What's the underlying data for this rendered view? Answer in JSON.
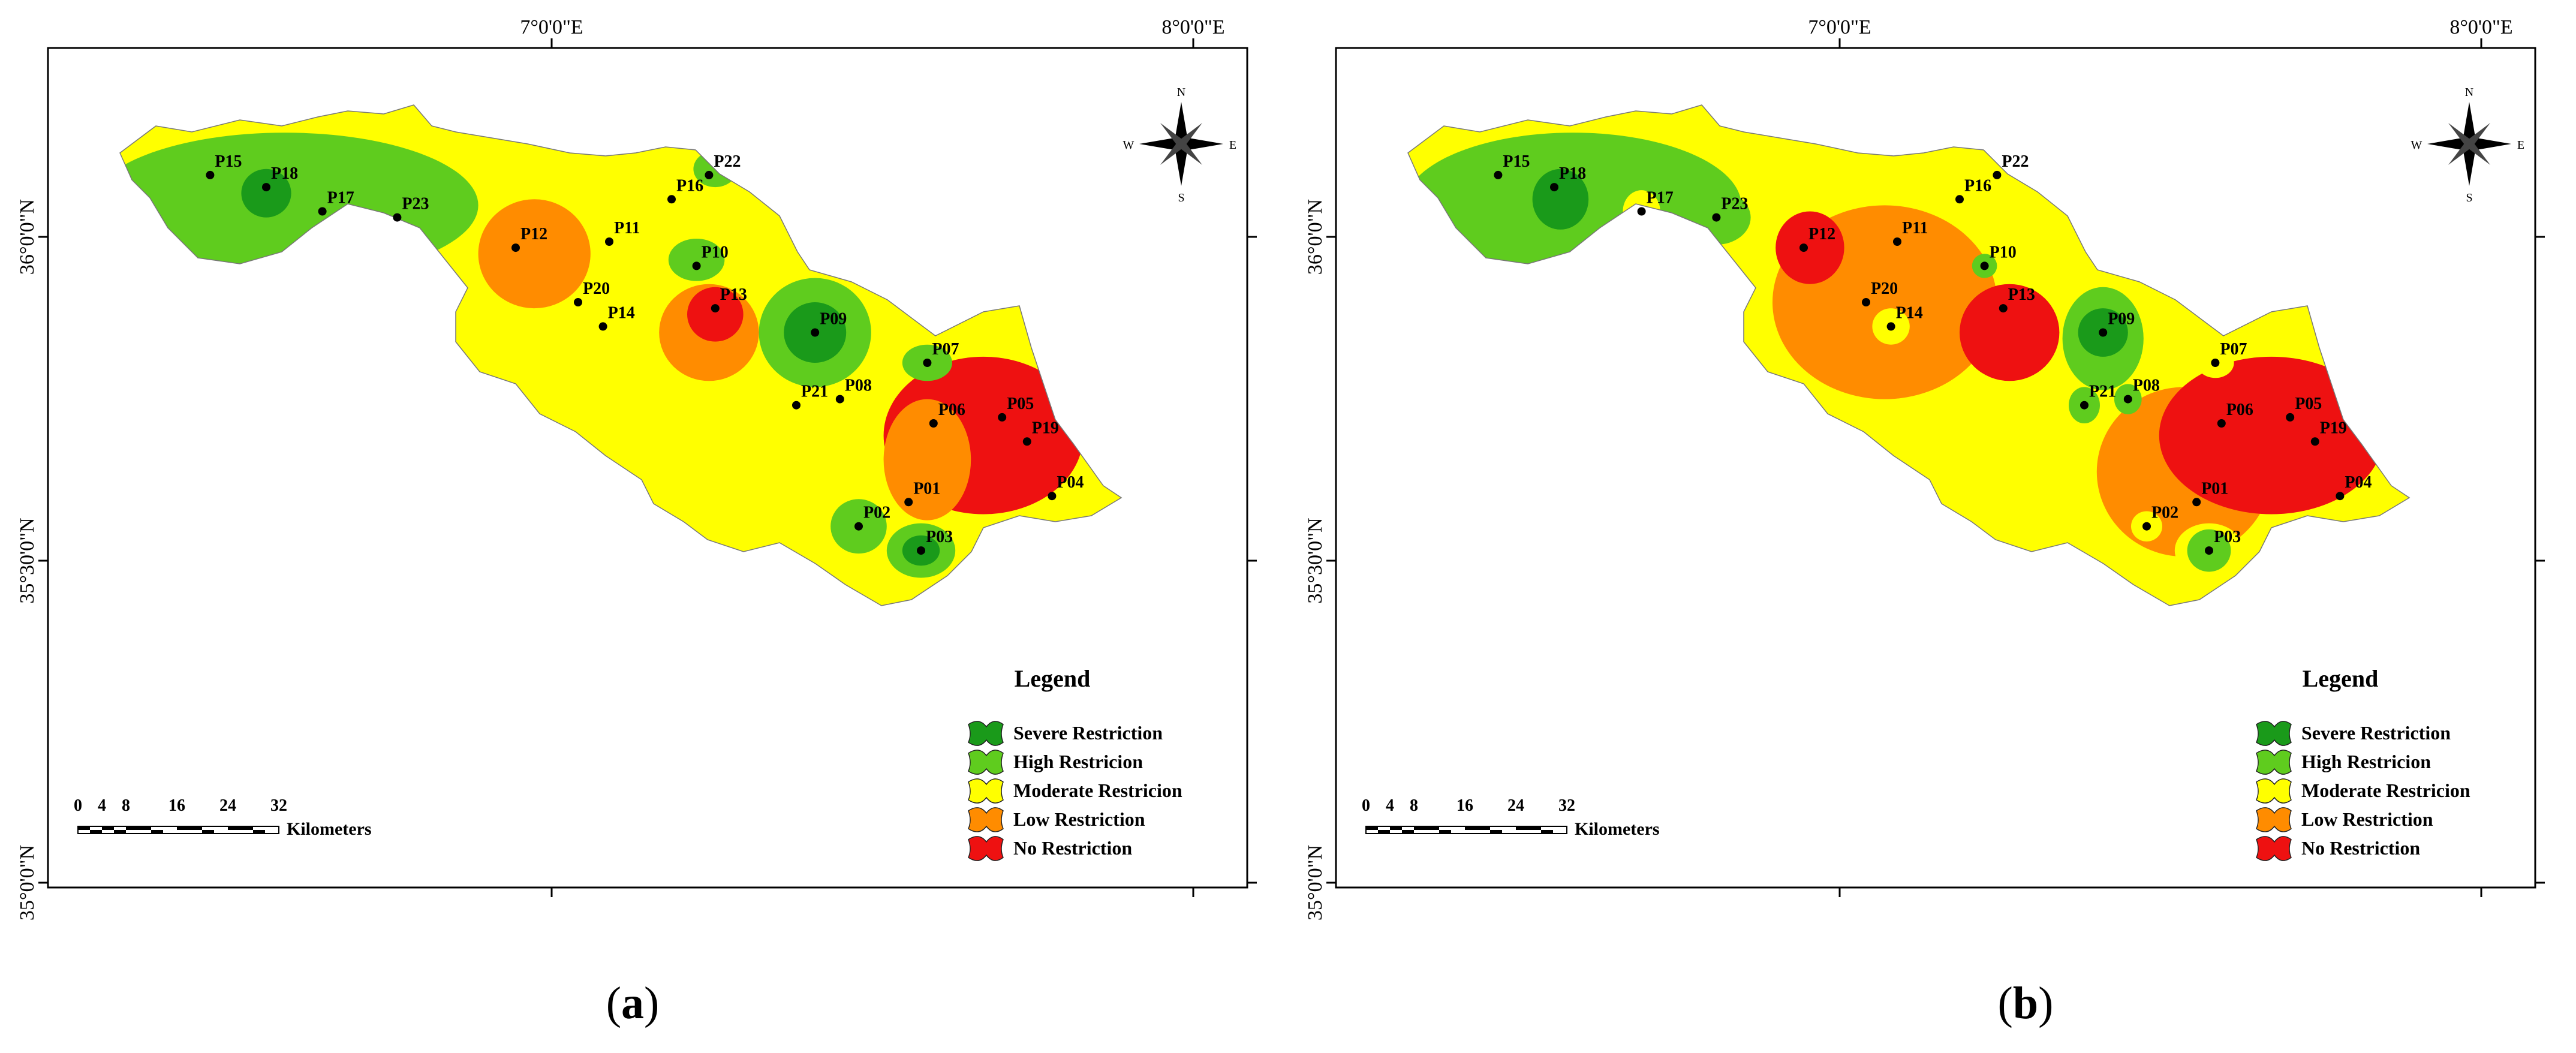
{
  "coords": {
    "lon_labels": [
      "7°0'0\"E",
      "8°0'0\"E"
    ],
    "lat_labels": [
      "36°0'0\"N",
      "35°30'0\"N",
      "35°0'0\"N"
    ]
  },
  "north_arrow": {
    "n": "N",
    "s": "S",
    "e": "E",
    "w": "W"
  },
  "legend": {
    "title": "Legend",
    "classes": [
      {
        "label": "Severe Restriction",
        "color": "#1a9a1a"
      },
      {
        "label": "High Restricion",
        "color": "#5fcc1e"
      },
      {
        "label": "Moderate  Restricion",
        "color": "#ffff00"
      },
      {
        "label": "Low Restriction",
        "color": "#ff8c00"
      },
      {
        "label": "No  Restriction",
        "color": "#ee1111"
      }
    ]
  },
  "scale": {
    "ticks": [
      "0",
      "4",
      "8",
      "16",
      "24",
      "32"
    ],
    "unit": "Kilometers"
  },
  "panels": [
    {
      "id": "a",
      "caption": "a",
      "points": [
        {
          "label": "P15",
          "x": 2.6,
          "y": 1.9
        },
        {
          "label": "P18",
          "x": 3.5,
          "y": 2.1
        },
        {
          "label": "P17",
          "x": 4.4,
          "y": 2.5
        },
        {
          "label": "P23",
          "x": 5.6,
          "y": 2.6
        },
        {
          "label": "P16",
          "x": 10.0,
          "y": 2.3
        },
        {
          "label": "P22",
          "x": 10.6,
          "y": 1.9
        },
        {
          "label": "P12",
          "x": 7.5,
          "y": 3.1
        },
        {
          "label": "P11",
          "x": 9.0,
          "y": 3.0
        },
        {
          "label": "P10",
          "x": 10.4,
          "y": 3.4
        },
        {
          "label": "P20",
          "x": 8.5,
          "y": 4.0
        },
        {
          "label": "P14",
          "x": 8.9,
          "y": 4.4
        },
        {
          "label": "P13",
          "x": 10.7,
          "y": 4.1
        },
        {
          "label": "P09",
          "x": 12.3,
          "y": 4.5
        },
        {
          "label": "P07",
          "x": 14.1,
          "y": 5.0
        },
        {
          "label": "P21",
          "x": 12.0,
          "y": 5.7
        },
        {
          "label": "P08",
          "x": 12.7,
          "y": 5.6
        },
        {
          "label": "P06",
          "x": 14.2,
          "y": 6.0
        },
        {
          "label": "P05",
          "x": 15.3,
          "y": 5.9
        },
        {
          "label": "P19",
          "x": 15.7,
          "y": 6.3
        },
        {
          "label": "P04",
          "x": 16.1,
          "y": 7.2
        },
        {
          "label": "P01",
          "x": 13.8,
          "y": 7.3
        },
        {
          "label": "P02",
          "x": 13.0,
          "y": 7.7
        },
        {
          "label": "P03",
          "x": 14.0,
          "y": 8.1
        }
      ],
      "zones": [
        {
          "cls": 3,
          "x": 7.8,
          "y": 3.2,
          "rx": 0.9,
          "ry": 0.9
        },
        {
          "cls": 3,
          "x": 10.6,
          "y": 4.5,
          "rx": 0.8,
          "ry": 0.8
        },
        {
          "cls": 4,
          "x": 15.0,
          "y": 6.2,
          "rx": 1.6,
          "ry": 1.3
        },
        {
          "cls": 3,
          "x": 14.1,
          "y": 6.6,
          "rx": 0.7,
          "ry": 1.0
        },
        {
          "cls": 1,
          "x": 3.8,
          "y": 2.4,
          "rx": 3.1,
          "ry": 1.2
        },
        {
          "cls": 0,
          "x": 3.5,
          "y": 2.2,
          "rx": 0.4,
          "ry": 0.4
        },
        {
          "cls": 1,
          "x": 10.7,
          "y": 1.8,
          "rx": 0.35,
          "ry": 0.3
        },
        {
          "cls": 1,
          "x": 10.4,
          "y": 3.3,
          "rx": 0.45,
          "ry": 0.35
        },
        {
          "cls": 4,
          "x": 10.7,
          "y": 4.2,
          "rx": 0.45,
          "ry": 0.45
        },
        {
          "cls": 1,
          "x": 12.3,
          "y": 4.5,
          "rx": 0.9,
          "ry": 0.9
        },
        {
          "cls": 0,
          "x": 12.3,
          "y": 4.5,
          "rx": 0.5,
          "ry": 0.5
        },
        {
          "cls": 1,
          "x": 14.1,
          "y": 5.0,
          "rx": 0.4,
          "ry": 0.3
        },
        {
          "cls": 1,
          "x": 13.0,
          "y": 7.7,
          "rx": 0.45,
          "ry": 0.45
        },
        {
          "cls": 1,
          "x": 14.0,
          "y": 8.1,
          "rx": 0.55,
          "ry": 0.45
        },
        {
          "cls": 0,
          "x": 14.0,
          "y": 8.1,
          "rx": 0.3,
          "ry": 0.25
        }
      ]
    },
    {
      "id": "b",
      "caption": "b",
      "points": [
        {
          "label": "P15",
          "x": 2.6,
          "y": 1.9
        },
        {
          "label": "P18",
          "x": 3.5,
          "y": 2.1
        },
        {
          "label": "P17",
          "x": 4.9,
          "y": 2.5
        },
        {
          "label": "P23",
          "x": 6.1,
          "y": 2.6
        },
        {
          "label": "P16",
          "x": 10.0,
          "y": 2.3
        },
        {
          "label": "P22",
          "x": 10.6,
          "y": 1.9
        },
        {
          "label": "P12",
          "x": 7.5,
          "y": 3.1
        },
        {
          "label": "P11",
          "x": 9.0,
          "y": 3.0
        },
        {
          "label": "P10",
          "x": 10.4,
          "y": 3.4
        },
        {
          "label": "P20",
          "x": 8.5,
          "y": 4.0
        },
        {
          "label": "P14",
          "x": 8.9,
          "y": 4.4
        },
        {
          "label": "P13",
          "x": 10.7,
          "y": 4.1
        },
        {
          "label": "P09",
          "x": 12.3,
          "y": 4.5
        },
        {
          "label": "P07",
          "x": 14.1,
          "y": 5.0
        },
        {
          "label": "P21",
          "x": 12.0,
          "y": 5.7
        },
        {
          "label": "P08",
          "x": 12.7,
          "y": 5.6
        },
        {
          "label": "P06",
          "x": 14.2,
          "y": 6.0
        },
        {
          "label": "P05",
          "x": 15.3,
          "y": 5.9
        },
        {
          "label": "P19",
          "x": 15.7,
          "y": 6.3
        },
        {
          "label": "P04",
          "x": 16.1,
          "y": 7.2
        },
        {
          "label": "P01",
          "x": 13.8,
          "y": 7.3
        },
        {
          "label": "P02",
          "x": 13.0,
          "y": 7.7
        },
        {
          "label": "P03",
          "x": 14.0,
          "y": 8.1
        }
      ],
      "zones": [
        {
          "cls": 3,
          "x": 8.8,
          "y": 4.0,
          "rx": 1.8,
          "ry": 1.6
        },
        {
          "cls": 4,
          "x": 7.6,
          "y": 3.1,
          "rx": 0.55,
          "ry": 0.6
        },
        {
          "cls": 4,
          "x": 10.8,
          "y": 4.5,
          "rx": 0.8,
          "ry": 0.8
        },
        {
          "cls": 3,
          "x": 13.6,
          "y": 6.8,
          "rx": 1.4,
          "ry": 1.4
        },
        {
          "cls": 4,
          "x": 15.0,
          "y": 6.2,
          "rx": 1.8,
          "ry": 1.3
        },
        {
          "cls": 1,
          "x": 3.8,
          "y": 2.4,
          "rx": 2.7,
          "ry": 1.2
        },
        {
          "cls": 0,
          "x": 3.6,
          "y": 2.3,
          "rx": 0.45,
          "ry": 0.5
        },
        {
          "cls": 2,
          "x": 4.9,
          "y": 2.5,
          "rx": 0.3,
          "ry": 0.35
        },
        {
          "cls": 1,
          "x": 6.1,
          "y": 2.6,
          "rx": 0.55,
          "ry": 0.45
        },
        {
          "cls": 1,
          "x": 10.4,
          "y": 3.4,
          "rx": 0.2,
          "ry": 0.2
        },
        {
          "cls": 2,
          "x": 8.9,
          "y": 4.4,
          "rx": 0.3,
          "ry": 0.3
        },
        {
          "cls": 1,
          "x": 12.3,
          "y": 4.6,
          "rx": 0.65,
          "ry": 0.85
        },
        {
          "cls": 0,
          "x": 12.3,
          "y": 4.5,
          "rx": 0.4,
          "ry": 0.4
        },
        {
          "cls": 1,
          "x": 12.0,
          "y": 5.7,
          "rx": 0.25,
          "ry": 0.3
        },
        {
          "cls": 1,
          "x": 12.7,
          "y": 5.6,
          "rx": 0.22,
          "ry": 0.25
        },
        {
          "cls": 2,
          "x": 14.1,
          "y": 5.0,
          "rx": 0.3,
          "ry": 0.25
        },
        {
          "cls": 2,
          "x": 13.0,
          "y": 7.7,
          "rx": 0.25,
          "ry": 0.25
        },
        {
          "cls": 2,
          "x": 14.0,
          "y": 8.1,
          "rx": 0.55,
          "ry": 0.45
        },
        {
          "cls": 1,
          "x": 14.0,
          "y": 8.1,
          "rx": 0.35,
          "ry": 0.35
        }
      ]
    }
  ]
}
